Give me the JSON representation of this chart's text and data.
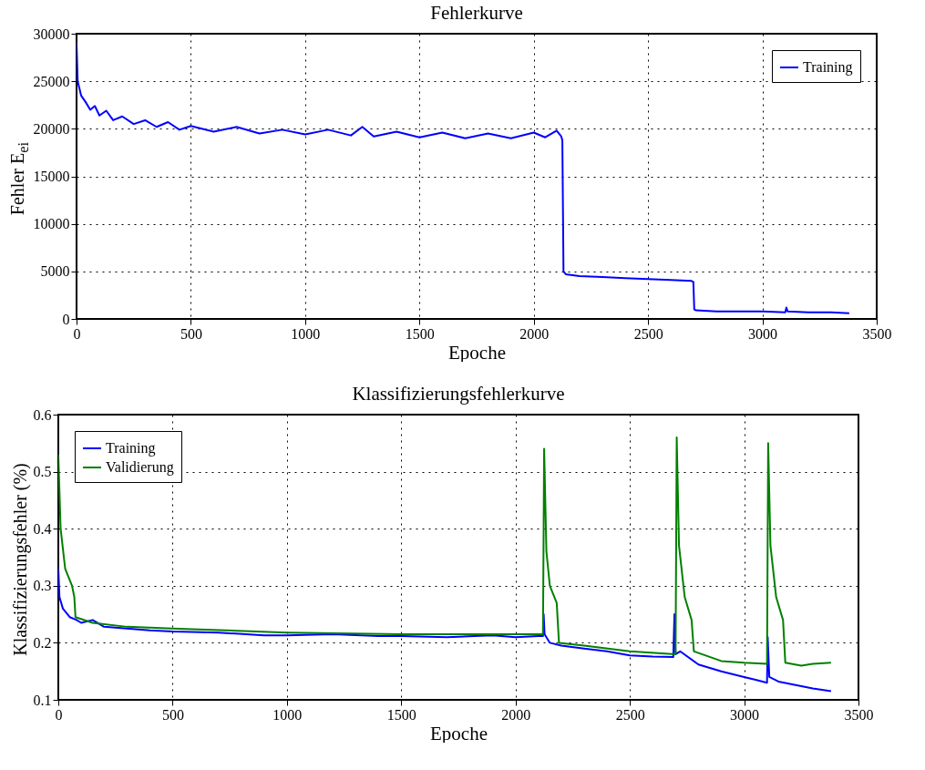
{
  "chart_data": [
    {
      "type": "line",
      "title": "Fehlerkurve",
      "xlabel": "Epoche",
      "ylabel": "Fehler E$_{ei}$",
      "xlim": [
        0,
        3500
      ],
      "ylim": [
        0,
        30000
      ],
      "xticks": [
        0,
        500,
        1000,
        1500,
        2000,
        2500,
        3000,
        3500
      ],
      "yticks": [
        0,
        5000,
        10000,
        15000,
        20000,
        25000,
        30000
      ],
      "grid": true,
      "legend": "top right",
      "series": [
        {
          "name": "Training",
          "color": "#0000ff",
          "x": [
            0,
            5,
            20,
            40,
            60,
            80,
            100,
            130,
            160,
            200,
            250,
            300,
            350,
            400,
            450,
            500,
            600,
            700,
            800,
            900,
            1000,
            1100,
            1200,
            1250,
            1300,
            1400,
            1500,
            1600,
            1700,
            1800,
            1900,
            2000,
            2050,
            2100,
            2120,
            2125,
            2130,
            2140,
            2200,
            2300,
            2400,
            2500,
            2600,
            2690,
            2698,
            2702,
            2710,
            2800,
            2900,
            3000,
            3100,
            3105,
            3110,
            3200,
            3300,
            3380
          ],
          "values": [
            29000,
            25000,
            23500,
            22800,
            22000,
            22400,
            21400,
            21900,
            20900,
            21300,
            20500,
            20900,
            20200,
            20700,
            19900,
            20300,
            19700,
            20200,
            19500,
            19900,
            19400,
            19900,
            19300,
            20200,
            19200,
            19700,
            19100,
            19600,
            19000,
            19500,
            19000,
            19600,
            19100,
            19800,
            19200,
            18800,
            5000,
            4700,
            4500,
            4400,
            4300,
            4200,
            4100,
            4000,
            3900,
            1000,
            900,
            800,
            800,
            800,
            700,
            1200,
            800,
            700,
            700,
            600
          ]
        }
      ]
    },
    {
      "type": "line",
      "title": "Klassifizierungsfehlerkurve",
      "xlabel": "Epoche",
      "ylabel": "Klassifizierungsfehler (%)",
      "xlim": [
        0,
        3500
      ],
      "ylim": [
        0.1,
        0.6
      ],
      "xticks": [
        0,
        500,
        1000,
        1500,
        2000,
        2500,
        3000,
        3500
      ],
      "yticks": [
        0.1,
        0.2,
        0.3,
        0.4,
        0.5,
        0.6
      ],
      "grid": true,
      "legend": "top left",
      "series": [
        {
          "name": "Training",
          "color": "#0000ff",
          "x": [
            0,
            5,
            20,
            50,
            80,
            100,
            150,
            200,
            300,
            400,
            500,
            700,
            900,
            1000,
            1200,
            1400,
            1500,
            1700,
            1900,
            2000,
            2100,
            2120,
            2123,
            2127,
            2150,
            2200,
            2300,
            2400,
            2500,
            2600,
            2690,
            2695,
            2700,
            2720,
            2800,
            2900,
            3000,
            3050,
            3100,
            3103,
            3110,
            3150,
            3200,
            3300,
            3380
          ],
          "values": [
            0.33,
            0.28,
            0.26,
            0.245,
            0.24,
            0.235,
            0.24,
            0.228,
            0.225,
            0.222,
            0.22,
            0.218,
            0.213,
            0.213,
            0.215,
            0.212,
            0.212,
            0.21,
            0.213,
            0.21,
            0.212,
            0.212,
            0.25,
            0.215,
            0.2,
            0.195,
            0.19,
            0.185,
            0.178,
            0.176,
            0.175,
            0.25,
            0.18,
            0.185,
            0.162,
            0.15,
            0.14,
            0.135,
            0.13,
            0.21,
            0.14,
            0.132,
            0.128,
            0.12,
            0.115
          ]
        },
        {
          "name": "Validierung",
          "color": "#008000",
          "x": [
            0,
            10,
            30,
            60,
            70,
            75,
            150,
            300,
            500,
            1000,
            1500,
            2000,
            2120,
            2125,
            2135,
            2150,
            2180,
            2190,
            2300,
            2500,
            2700,
            2705,
            2715,
            2740,
            2770,
            2780,
            2900,
            3000,
            3100,
            3105,
            3115,
            3140,
            3170,
            3180,
            3250,
            3300,
            3380
          ],
          "values": [
            0.53,
            0.4,
            0.33,
            0.3,
            0.28,
            0.245,
            0.235,
            0.228,
            0.225,
            0.218,
            0.215,
            0.215,
            0.215,
            0.54,
            0.36,
            0.3,
            0.27,
            0.2,
            0.195,
            0.185,
            0.18,
            0.56,
            0.37,
            0.28,
            0.24,
            0.185,
            0.168,
            0.165,
            0.163,
            0.55,
            0.37,
            0.28,
            0.24,
            0.165,
            0.16,
            0.163,
            0.165
          ]
        }
      ]
    }
  ]
}
